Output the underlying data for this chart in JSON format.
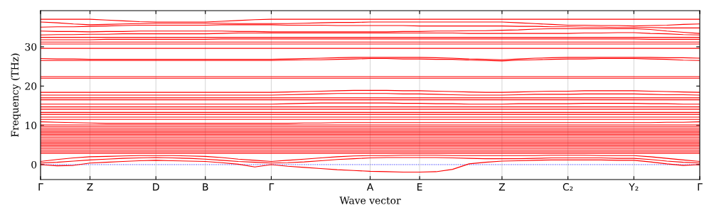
{
  "chart_data": {
    "type": "line",
    "xlabel": "Wave vector",
    "ylabel": "Frequency (THz)",
    "categories": [
      "Γ",
      null,
      null,
      "Z",
      null,
      null,
      null,
      "D",
      null,
      null,
      "B",
      null,
      null,
      null,
      "Γ",
      null,
      null,
      null,
      null,
      null,
      "A",
      null,
      null,
      "E",
      null,
      null,
      null,
      null,
      "Z",
      null,
      null,
      null,
      "C₂",
      null,
      null,
      null,
      "Y₂",
      null,
      null,
      null,
      "Γ"
    ],
    "ylim": [
      -3.8,
      39.2
    ],
    "yticks": [
      0,
      10,
      20,
      30
    ],
    "grid": "x",
    "marker": "none",
    "line_style": "solid",
    "ref_lines": [
      {
        "axis": "y",
        "value": 0,
        "color": "#0000ff",
        "line_style": "dotted"
      }
    ],
    "series": [
      {
        "color": "#ff0000",
        "values": [
          37,
          37,
          37,
          37,
          36.8,
          36.6,
          36.4,
          36.3,
          36.3,
          36.3,
          36.3,
          36.5,
          36.7,
          36.9,
          37,
          37,
          37,
          37,
          37,
          37,
          37,
          37,
          37,
          37,
          37,
          37,
          37,
          37,
          37,
          37,
          37,
          37,
          37,
          37,
          37,
          37,
          37,
          37,
          37,
          37,
          37
        ]
      },
      {
        "color": "#ff0000",
        "values": [
          36.3,
          36.1,
          35.8,
          35.6,
          35.7,
          35.8,
          35.9,
          36.0,
          36,
          36,
          36,
          36,
          35.9,
          35.9,
          35.9,
          35.9,
          36,
          36.1,
          36.2,
          36.2,
          36.3,
          36.3,
          36.3,
          36.3,
          36.3,
          36.3,
          36.3,
          36.3,
          36.3,
          36.1,
          35.9,
          35.7,
          35.5,
          35.5,
          35.4,
          35.4,
          35.3,
          35.4,
          35.5,
          35.7,
          35.8
        ]
      },
      {
        "color": "#ff0000",
        "values": [
          35,
          35.1,
          35.1,
          35.2,
          35.3,
          35.4,
          35.5,
          35.5,
          35.5,
          35.5,
          35.5,
          35.6,
          35.6,
          35.6,
          35.6,
          35.5,
          35.5,
          35.5,
          35.4,
          35.4,
          35.4,
          35.4,
          35.4,
          35.3,
          35.3,
          35.3,
          35.3,
          35.3,
          35.3,
          35.2,
          35.2,
          35.1,
          35.1,
          35.0,
          35.0,
          34.9,
          34.9,
          34.9,
          34.8,
          34.8,
          34.8
        ]
      },
      {
        "color": "#ff0000",
        "values": [
          34,
          33.9,
          33.9,
          33.8,
          33.9,
          33.9,
          34,
          34,
          34,
          34,
          34,
          34,
          33.9,
          33.9,
          33.8,
          33.8,
          33.8,
          33.8,
          33.8,
          33.8,
          33.8,
          33.8,
          33.9,
          33.9,
          34,
          34,
          34.1,
          34.1,
          34.2,
          34.3,
          34.5,
          34.6,
          34.6,
          34.6,
          34.6,
          34.6,
          34.6,
          34.4,
          34,
          33.7,
          33.4
        ]
      },
      {
        "color": "#ff0000",
        "values": [
          33,
          33.1,
          33.1,
          33.2,
          33.2,
          33.3,
          33.3,
          33.3,
          33.3,
          33.3,
          33.3,
          33.4,
          33.5,
          33.5,
          33.5,
          33.5,
          33.5,
          33.5,
          33.5,
          33.5,
          33.5,
          33.5,
          33.5,
          33.5,
          33.5,
          33.5,
          33.4,
          33.4,
          33.4,
          33.4,
          33.4,
          33.4,
          33.4,
          33.5,
          33.5,
          33.6,
          33.6,
          33.4,
          33.3,
          33.1,
          33.0
        ]
      },
      {
        "color": "#ff0000",
        "values": [
          32.4,
          32.4,
          32.4,
          32.4,
          32.4,
          32.4,
          32.4,
          32.4,
          32.4,
          32.4,
          32.4,
          32.4,
          32.4,
          32.4,
          32.4,
          32.4,
          32.4,
          32.4,
          32.4,
          32.4,
          32.4,
          32.4,
          32.4,
          32.4,
          32.4,
          32.4,
          32.4,
          32.4,
          32.4,
          32.4,
          32.4,
          32.4,
          32.4,
          32.4,
          32.4,
          32.4,
          32.4,
          32.4,
          32.4,
          32.4,
          32.4
        ]
      },
      {
        "color": "#ff0000",
        "values": [
          31.8,
          31.8,
          31.8,
          31.8,
          31.9,
          31.9,
          31.9,
          31.9,
          31.9,
          31.9,
          31.9,
          32,
          32,
          32,
          32,
          32,
          32,
          32,
          32,
          32,
          32,
          32,
          32,
          32,
          32,
          32,
          32,
          32,
          32,
          32,
          32,
          32,
          32,
          32,
          32,
          32,
          32,
          31.9,
          31.9,
          31.9,
          31.9
        ]
      },
      {
        "color": "#ff0000",
        "values": [
          31.2,
          31.2,
          31.2,
          31.2,
          31.2,
          31.2,
          31.2,
          31.2,
          31.2,
          31.2,
          31.2,
          31.2,
          31.2,
          31.2,
          31.2,
          31.2,
          31.2,
          31.2,
          31.2,
          31.2,
          31.2,
          31.2,
          31.2,
          31.2,
          31.2,
          31.2,
          31.2,
          31.2,
          31.2,
          31.2,
          31.2,
          31.2,
          31.2,
          31.2,
          31.2,
          31.2,
          31.2,
          31.2,
          31.2,
          31.2,
          31.2
        ]
      },
      {
        "color": "#ff0000",
        "values": [
          30.7,
          30.7,
          30.7,
          30.7,
          30.7,
          30.7,
          30.7,
          30.7,
          30.7,
          30.7,
          30.7,
          30.7,
          30.7,
          30.7,
          30.7,
          30.7,
          30.7,
          30.7,
          30.7,
          30.7,
          30.7,
          30.7,
          30.7,
          30.7,
          30.7,
          30.7,
          30.7,
          30.7,
          30.7,
          30.7,
          30.7,
          30.7,
          30.7,
          30.7,
          30.7,
          30.7,
          30.7,
          30.7,
          30.7,
          30.7,
          30.7
        ]
      },
      {
        "color": "#ff0000",
        "values": [
          29.6,
          29.6,
          29.6,
          29.6,
          29.6,
          29.6,
          29.6,
          29.6,
          29.6,
          29.6,
          29.6,
          29.6,
          29.6,
          29.6,
          29.6,
          29.6,
          29.6,
          29.6,
          29.6,
          29.6,
          29.6,
          29.6,
          29.6,
          29.6,
          29.6,
          29.6,
          29.6,
          29.6,
          29.6,
          29.6,
          29.6,
          29.6,
          29.6,
          29.6,
          29.6,
          29.6,
          29.6,
          29.6,
          29.6,
          29.6,
          29.6
        ]
      },
      {
        "color": "#ff0000",
        "values": [
          27,
          26.9,
          26.9,
          26.8,
          26.8,
          26.8,
          26.8,
          26.8,
          26.8,
          26.8,
          26.8,
          26.8,
          26.8,
          26.8,
          26.8,
          26.9,
          27,
          27.1,
          27.2,
          27.3,
          27.3,
          27.3,
          27.3,
          27.3,
          27.2,
          27.1,
          26.9,
          26.8,
          26.7,
          26.9,
          27.1,
          27.2,
          27.3,
          27.3,
          27.3,
          27.3,
          27.3,
          27.3,
          27.2,
          27.2,
          27.1
        ]
      },
      {
        "color": "#ff0000",
        "values": [
          26.5,
          26.5,
          26.5,
          26.5,
          26.5,
          26.5,
          26.5,
          26.5,
          26.5,
          26.5,
          26.5,
          26.5,
          26.5,
          26.5,
          26.5,
          26.6,
          26.7,
          26.7,
          26.8,
          26.9,
          27.0,
          27.0,
          26.9,
          26.9,
          26.8,
          26.8,
          26.6,
          26.5,
          26.4,
          26.6,
          26.7,
          26.8,
          26.9,
          26.9,
          27.0,
          27.0,
          27.0,
          26.9,
          26.8,
          26.6,
          26.5
        ]
      },
      {
        "color": "#ff0000",
        "values": [
          22.4,
          22.4,
          22.4,
          22.4,
          22.4,
          22.4,
          22.4,
          22.4,
          22.4,
          22.4,
          22.4,
          22.4,
          22.4,
          22.4,
          22.4,
          22.4,
          22.4,
          22.4,
          22.4,
          22.4,
          22.4,
          22.4,
          22.4,
          22.4,
          22.4,
          22.4,
          22.4,
          22.4,
          22.4,
          22.4,
          22.4,
          22.4,
          22.4,
          22.4,
          22.4,
          22.4,
          22.4,
          22.4,
          22.4,
          22.4,
          22.4
        ]
      },
      {
        "color": "#ff0000",
        "values": [
          22.0,
          22.0,
          22.0,
          22.0,
          22.0,
          22.0,
          22.0,
          22.0,
          22.0,
          22.0,
          22.0,
          22.0,
          22.0,
          22.0,
          22.0,
          22.0,
          22.0,
          22.0,
          22.0,
          22.0,
          22.0,
          22.0,
          22.0,
          22.0,
          22.0,
          22.0,
          22.0,
          22.0,
          22.0,
          22.0,
          22.0,
          22.0,
          22.0,
          22.0,
          22.0,
          22.0,
          22.0,
          22.0,
          22.0,
          22.0,
          22.0
        ]
      },
      {
        "color": "#ff0000",
        "values": [
          18.4,
          18.4,
          18.4,
          18.4,
          18.4,
          18.4,
          18.4,
          18.4,
          18.4,
          18.4,
          18.4,
          18.4,
          18.4,
          18.4,
          18.4,
          18.5,
          18.6,
          18.7,
          18.8,
          18.9,
          18.9,
          18.9,
          18.8,
          18.8,
          18.7,
          18.6,
          18.5,
          18.4,
          18.4,
          18.5,
          18.6,
          18.7,
          18.7,
          18.8,
          18.8,
          18.8,
          18.8,
          18.7,
          18.6,
          18.5,
          18.4
        ]
      },
      {
        "color": "#ff0000",
        "values": [
          17.7,
          17.7,
          17.7,
          17.7,
          17.7,
          17.7,
          17.7,
          17.7,
          17.7,
          17.7,
          17.7,
          17.7,
          17.7,
          17.7,
          17.7,
          17.8,
          17.9,
          18.0,
          18.1,
          18.1,
          18.1,
          18.1,
          18.0,
          18.0,
          17.9,
          17.8,
          17.7,
          17.7,
          17.7,
          17.8,
          17.9,
          17.9,
          17.9,
          18.0,
          18.0,
          18.0,
          18.0,
          17.9,
          17.8,
          17.8,
          17.7
        ]
      },
      {
        "color": "#ff0000",
        "values": [
          17.0,
          17.0,
          17.0,
          17.0,
          17.0,
          17.0,
          17.0,
          17.0,
          17.0,
          17.0,
          17.0,
          17.0,
          17.0,
          17.0,
          17.0,
          17.0,
          17.0,
          17.0,
          17.0,
          17.0,
          17.0,
          17.0,
          17.0,
          17.0,
          17.0,
          17.0,
          17.0,
          17.0,
          17.0,
          17.0,
          17.0,
          17.0,
          17.0,
          17.0,
          17.0,
          17.0,
          17.0,
          17.0,
          17.0,
          17.0,
          17.0
        ]
      },
      {
        "color": "#ff0000",
        "values": [
          16.5,
          16.5,
          16.5,
          16.5,
          16.5,
          16.5,
          16.5,
          16.5,
          16.5,
          16.5,
          16.5,
          16.5,
          16.5,
          16.5,
          16.5,
          16.5,
          16.5,
          16.5,
          16.5,
          16.5,
          16.5,
          16.5,
          16.5,
          16.5,
          16.5,
          16.5,
          16.5,
          16.5,
          16.5,
          16.5,
          16.5,
          16.5,
          16.5,
          16.5,
          16.5,
          16.5,
          16.5,
          16.5,
          16.5,
          16.5,
          16.5
        ]
      },
      {
        "color": "#ff0000",
        "values": [
          15.4,
          15.4,
          15.4,
          15.4,
          15.4,
          15.4,
          15.4,
          15.4,
          15.4,
          15.4,
          15.4,
          15.4,
          15.4,
          15.4,
          15.4,
          15.5,
          15.6,
          15.7,
          15.7,
          15.7,
          15.7,
          15.7,
          15.6,
          15.6,
          15.5,
          15.5,
          15.4,
          15.4,
          15.4,
          15.5,
          15.5,
          15.5,
          15.5,
          15.6,
          15.6,
          15.6,
          15.6,
          15.5,
          15.5,
          15.4,
          15.4
        ]
      },
      {
        "color": "#ff0000",
        "values": [
          14.7,
          14.7,
          14.7,
          14.7,
          14.7,
          14.7,
          14.7,
          14.7,
          14.7,
          14.7,
          14.7,
          14.7,
          14.7,
          14.7,
          14.7,
          14.7,
          14.7,
          14.7,
          14.7,
          14.7,
          14.7,
          14.7,
          14.7,
          14.7,
          14.7,
          14.7,
          14.7,
          14.7,
          14.7,
          14.7,
          14.7,
          14.7,
          14.7,
          14.7,
          14.7,
          14.7,
          14.7,
          14.7,
          14.7,
          14.7,
          14.7
        ]
      },
      {
        "color": "#ff0000",
        "values": [
          14.1,
          14.1,
          14.1,
          14.1,
          14.1,
          14.1,
          14.1,
          14.1,
          14.1,
          14.1,
          14.1,
          14.1,
          14.1,
          14.1,
          14.1,
          14.1,
          14.1,
          14.1,
          14.1,
          14.1,
          14.1,
          14.1,
          14.1,
          14.1,
          14.1,
          14.1,
          14.1,
          14.1,
          14.1,
          14.1,
          14.1,
          14.1,
          14.1,
          14.1,
          14.1,
          14.1,
          14.1,
          14.1,
          14.1,
          14.1,
          14.1
        ]
      },
      {
        "color": "#ff0000",
        "values": [
          13.3,
          13.3,
          13.3,
          13.3,
          13.3,
          13.3,
          13.3,
          13.3,
          13.3,
          13.3,
          13.3,
          13.3,
          13.3,
          13.3,
          13.3,
          13.3,
          13.3,
          13.3,
          13.3,
          13.3,
          13.3,
          13.3,
          13.3,
          13.3,
          13.3,
          13.3,
          13.3,
          13.3,
          13.3,
          13.3,
          13.3,
          13.3,
          13.3,
          13.3,
          13.3,
          13.3,
          13.3,
          13.3,
          13.3,
          13.3,
          13.3
        ]
      },
      {
        "color": "#ff0000",
        "values": [
          12.8,
          12.8,
          12.8,
          12.8,
          12.8,
          12.8,
          12.8,
          12.8,
          12.8,
          12.8,
          12.8,
          12.8,
          12.8,
          12.8,
          12.8,
          12.8,
          12.8,
          12.8,
          12.8,
          12.8,
          12.8,
          12.8,
          12.8,
          12.8,
          12.8,
          12.8,
          12.8,
          12.8,
          12.8,
          12.8,
          12.8,
          12.8,
          12.8,
          12.8,
          12.8,
          12.8,
          12.8,
          12.8,
          12.8,
          12.8,
          12.8
        ]
      },
      {
        "color": "#ff0000",
        "values": [
          12.1,
          12.1,
          12.1,
          12.1,
          12.1,
          12.1,
          12.1,
          12.1,
          12.1,
          12.1,
          12.1,
          12.1,
          12.1,
          12.1,
          12.1,
          12.1,
          12.1,
          12.1,
          12.1,
          12.1,
          12.1,
          12.1,
          12.1,
          12.1,
          12.1,
          12.1,
          12.1,
          12.1,
          12.1,
          12.1,
          12.1,
          12.1,
          12.1,
          12.1,
          12.1,
          12.1,
          12.1,
          12.1,
          12.1,
          12.1,
          12.1
        ]
      },
      {
        "color": "#ff0000",
        "values": [
          11.5,
          11.5,
          11.5,
          11.5,
          11.5,
          11.5,
          11.5,
          11.5,
          11.5,
          11.5,
          11.5,
          11.5,
          11.5,
          11.5,
          11.5,
          11.5,
          11.5,
          11.5,
          11.5,
          11.5,
          11.5,
          11.5,
          11.5,
          11.5,
          11.5,
          11.5,
          11.5,
          11.5,
          11.5,
          11.5,
          11.5,
          11.5,
          11.5,
          11.5,
          11.5,
          11.5,
          11.5,
          11.5,
          11.5,
          11.5,
          11.5
        ]
      },
      {
        "color": "#ff0000",
        "values": [
          10.9,
          10.8,
          10.7,
          10.6,
          10.5,
          10.5,
          10.5,
          10.5,
          10.5,
          10.5,
          10.5,
          10.5,
          10.5,
          10.5,
          10.5,
          10.5,
          10.6,
          10.6,
          10.7,
          10.7,
          10.7,
          10.7,
          10.7,
          10.7,
          10.7,
          10.7,
          10.7,
          10.7,
          10.7,
          10.7,
          10.7,
          10.7,
          10.7,
          10.7,
          10.7,
          10.7,
          10.7,
          10.7,
          10.8,
          10.8,
          10.9
        ]
      },
      {
        "color": "#ff0000",
        "values": [
          10.1,
          10.1,
          10.1,
          10.1,
          10.1,
          10.1,
          10.1,
          10.1,
          10.1,
          10.1,
          10.1,
          10.1,
          10.1,
          10.1,
          10.1,
          10.1,
          10.1,
          10.1,
          10.1,
          10.1,
          10.1,
          10.1,
          10.1,
          10.1,
          10.1,
          10.1,
          10.1,
          10.1,
          10.1,
          10.1,
          10.1,
          10.1,
          10.1,
          10.1,
          10.1,
          10.1,
          10.1,
          10.1,
          10.1,
          10.1,
          10.1
        ]
      },
      {
        "color": "#ff0000",
        "values": [
          9.7,
          9.7,
          9.7,
          9.7,
          9.7,
          9.7,
          9.7,
          9.7,
          9.7,
          9.7,
          9.7,
          9.7,
          9.7,
          9.7,
          9.7,
          9.7,
          9.7,
          9.7,
          9.7,
          9.7,
          9.7,
          9.7,
          9.7,
          9.7,
          9.7,
          9.7,
          9.7,
          9.7,
          9.7,
          9.7,
          9.7,
          9.7,
          9.7,
          9.7,
          9.7,
          9.7,
          9.7,
          9.7,
          9.7,
          9.7,
          9.7
        ]
      },
      {
        "color": "#ff0000",
        "values": [
          9.3,
          9.3,
          9.3,
          9.3,
          9.3,
          9.3,
          9.3,
          9.3,
          9.3,
          9.3,
          9.3,
          9.3,
          9.3,
          9.3,
          9.3,
          9.3,
          9.3,
          9.3,
          9.3,
          9.3,
          9.3,
          9.3,
          9.3,
          9.3,
          9.3,
          9.3,
          9.3,
          9.3,
          9.3,
          9.3,
          9.3,
          9.3,
          9.3,
          9.3,
          9.3,
          9.3,
          9.3,
          9.3,
          9.3,
          9.3,
          9.3
        ]
      },
      {
        "color": "#ff0000",
        "values": [
          8.9,
          8.9,
          8.9,
          8.9,
          8.9,
          8.9,
          8.9,
          8.9,
          8.9,
          8.9,
          8.9,
          8.9,
          8.9,
          8.9,
          8.9,
          8.9,
          8.9,
          8.9,
          8.9,
          8.9,
          8.9,
          8.9,
          8.9,
          8.9,
          8.9,
          8.9,
          8.9,
          8.9,
          8.9,
          8.9,
          8.9,
          8.9,
          8.9,
          8.9,
          8.9,
          8.9,
          8.9,
          8.9,
          8.9,
          8.9,
          8.9
        ]
      },
      {
        "color": "#ff0000",
        "values": [
          8.5,
          8.5,
          8.5,
          8.5,
          8.5,
          8.5,
          8.5,
          8.5,
          8.5,
          8.5,
          8.5,
          8.5,
          8.5,
          8.5,
          8.5,
          8.5,
          8.5,
          8.5,
          8.5,
          8.5,
          8.5,
          8.5,
          8.5,
          8.5,
          8.5,
          8.5,
          8.5,
          8.5,
          8.5,
          8.5,
          8.5,
          8.5,
          8.5,
          8.5,
          8.5,
          8.5,
          8.5,
          8.5,
          8.5,
          8.5,
          8.5
        ]
      },
      {
        "color": "#ff0000",
        "values": [
          8.1,
          8.1,
          8.1,
          8.1,
          8.1,
          8.1,
          8.1,
          8.1,
          8.1,
          8.1,
          8.1,
          8.1,
          8.1,
          8.1,
          8.1,
          8.1,
          8.1,
          8.1,
          8.1,
          8.1,
          8.1,
          8.1,
          8.1,
          8.1,
          8.1,
          8.1,
          8.1,
          8.1,
          8.1,
          8.1,
          8.1,
          8.1,
          8.1,
          8.1,
          8.1,
          8.1,
          8.1,
          8.1,
          8.1,
          8.1,
          8.1
        ]
      },
      {
        "color": "#ff0000",
        "values": [
          7.7,
          7.7,
          7.7,
          7.7,
          7.7,
          7.7,
          7.7,
          7.7,
          7.7,
          7.7,
          7.7,
          7.7,
          7.7,
          7.7,
          7.7,
          7.7,
          7.7,
          7.7,
          7.7,
          7.7,
          7.7,
          7.7,
          7.7,
          7.7,
          7.7,
          7.7,
          7.7,
          7.7,
          7.7,
          7.7,
          7.7,
          7.7,
          7.7,
          7.7,
          7.7,
          7.7,
          7.7,
          7.7,
          7.7,
          7.7,
          7.7
        ]
      },
      {
        "color": "#ff0000",
        "values": [
          7.3,
          7.3,
          7.3,
          7.3,
          7.3,
          7.3,
          7.3,
          7.3,
          7.3,
          7.3,
          7.3,
          7.3,
          7.3,
          7.3,
          7.3,
          7.3,
          7.3,
          7.3,
          7.3,
          7.3,
          7.3,
          7.3,
          7.3,
          7.3,
          7.3,
          7.3,
          7.3,
          7.3,
          7.3,
          7.3,
          7.3,
          7.3,
          7.3,
          7.3,
          7.3,
          7.3,
          7.3,
          7.3,
          7.3,
          7.3,
          7.3
        ]
      },
      {
        "color": "#ff0000",
        "values": [
          6.9,
          6.9,
          6.9,
          6.9,
          6.9,
          6.9,
          6.9,
          6.9,
          6.9,
          6.9,
          6.9,
          6.9,
          6.9,
          6.9,
          6.9,
          6.9,
          6.9,
          6.9,
          6.9,
          6.9,
          6.9,
          6.9,
          6.9,
          6.9,
          6.9,
          6.9,
          6.9,
          6.9,
          6.9,
          6.9,
          6.9,
          6.9,
          6.9,
          6.9,
          6.9,
          6.9,
          6.9,
          6.9,
          6.9,
          6.9,
          6.9
        ]
      },
      {
        "color": "#ff0000",
        "values": [
          6.5,
          6.5,
          6.5,
          6.5,
          6.5,
          6.5,
          6.5,
          6.5,
          6.5,
          6.5,
          6.5,
          6.5,
          6.5,
          6.5,
          6.5,
          6.5,
          6.5,
          6.5,
          6.5,
          6.5,
          6.5,
          6.5,
          6.5,
          6.5,
          6.5,
          6.5,
          6.5,
          6.5,
          6.5,
          6.5,
          6.5,
          6.5,
          6.5,
          6.5,
          6.5,
          6.5,
          6.5,
          6.5,
          6.5,
          6.5,
          6.5
        ]
      },
      {
        "color": "#ff0000",
        "values": [
          6.1,
          6.1,
          6.1,
          6.1,
          6.1,
          6.1,
          6.1,
          6.1,
          6.1,
          6.1,
          6.1,
          6.1,
          6.1,
          6.1,
          6.1,
          6.1,
          6.1,
          6.1,
          6.1,
          6.1,
          6.1,
          6.1,
          6.1,
          6.1,
          6.1,
          6.1,
          6.1,
          6.1,
          6.1,
          6.1,
          6.1,
          6.1,
          6.1,
          6.1,
          6.1,
          6.1,
          6.1,
          6.1,
          6.1,
          6.1,
          6.1
        ]
      },
      {
        "color": "#ff0000",
        "values": [
          5.7,
          5.7,
          5.7,
          5.7,
          5.7,
          5.7,
          5.7,
          5.7,
          5.7,
          5.7,
          5.7,
          5.7,
          5.7,
          5.7,
          5.7,
          5.7,
          5.7,
          5.7,
          5.7,
          5.7,
          5.7,
          5.7,
          5.7,
          5.7,
          5.7,
          5.7,
          5.7,
          5.7,
          5.7,
          5.7,
          5.7,
          5.7,
          5.7,
          5.7,
          5.7,
          5.7,
          5.7,
          5.7,
          5.7,
          5.7,
          5.7
        ]
      },
      {
        "color": "#ff0000",
        "values": [
          5.3,
          5.3,
          5.3,
          5.3,
          5.3,
          5.3,
          5.3,
          5.3,
          5.3,
          5.3,
          5.3,
          5.3,
          5.3,
          5.3,
          5.3,
          5.3,
          5.3,
          5.3,
          5.3,
          5.3,
          5.3,
          5.3,
          5.3,
          5.3,
          5.3,
          5.3,
          5.3,
          5.3,
          5.3,
          5.3,
          5.3,
          5.3,
          5.3,
          5.3,
          5.3,
          5.3,
          5.3,
          5.3,
          5.3,
          5.3,
          5.3
        ]
      },
      {
        "color": "#ff0000",
        "values": [
          4.9,
          4.9,
          4.9,
          4.9,
          4.9,
          4.9,
          4.9,
          4.9,
          4.9,
          4.9,
          4.9,
          4.9,
          4.9,
          4.9,
          4.9,
          4.9,
          4.9,
          4.9,
          4.9,
          4.9,
          4.9,
          4.9,
          4.9,
          4.9,
          4.9,
          4.9,
          4.9,
          4.9,
          4.9,
          4.9,
          4.9,
          4.9,
          4.9,
          4.9,
          4.9,
          4.9,
          4.9,
          4.9,
          4.9,
          4.9,
          4.9
        ]
      },
      {
        "color": "#ff0000",
        "values": [
          4.5,
          4.5,
          4.5,
          4.5,
          4.5,
          4.5,
          4.5,
          4.5,
          4.5,
          4.5,
          4.5,
          4.5,
          4.5,
          4.5,
          4.5,
          4.5,
          4.5,
          4.5,
          4.5,
          4.5,
          4.5,
          4.5,
          4.5,
          4.5,
          4.5,
          4.5,
          4.5,
          4.5,
          4.5,
          4.5,
          4.5,
          4.5,
          4.5,
          4.5,
          4.5,
          4.5,
          4.5,
          4.5,
          4.5,
          4.5,
          4.5
        ]
      },
      {
        "color": "#ff0000",
        "values": [
          4.1,
          4.1,
          4.1,
          4.1,
          4.1,
          4.1,
          4.1,
          4.1,
          4.1,
          4.1,
          4.1,
          4.1,
          4.1,
          4.1,
          4.1,
          4.1,
          4.1,
          4.1,
          4.1,
          4.1,
          4.1,
          4.1,
          4.1,
          4.1,
          4.1,
          4.1,
          4.1,
          4.1,
          4.1,
          4.1,
          4.1,
          4.1,
          4.1,
          4.1,
          4.1,
          4.1,
          4.1,
          4.1,
          4.1,
          4.1,
          4.1
        ]
      },
      {
        "color": "#ff0000",
        "values": [
          3.7,
          3.7,
          3.7,
          3.7,
          3.7,
          3.7,
          3.7,
          3.7,
          3.7,
          3.7,
          3.7,
          3.7,
          3.7,
          3.7,
          3.7,
          3.7,
          3.7,
          3.7,
          3.7,
          3.7,
          3.7,
          3.7,
          3.7,
          3.7,
          3.7,
          3.7,
          3.7,
          3.7,
          3.7,
          3.7,
          3.7,
          3.7,
          3.7,
          3.7,
          3.7,
          3.7,
          3.7,
          3.7,
          3.7,
          3.7,
          3.7
        ]
      },
      {
        "color": "#ff0000",
        "values": [
          3.3,
          3.3,
          3.3,
          3.3,
          3.3,
          3.3,
          3.3,
          3.3,
          3.3,
          3.3,
          3.3,
          3.3,
          3.3,
          3.3,
          3.3,
          3.3,
          3.3,
          3.3,
          3.3,
          3.3,
          3.3,
          3.3,
          3.3,
          3.3,
          3.3,
          3.3,
          3.3,
          3.3,
          3.3,
          3.3,
          3.3,
          3.3,
          3.3,
          3.3,
          3.3,
          3.3,
          3.3,
          3.3,
          3.3,
          3.3,
          3.3
        ]
      },
      {
        "color": "#ff0000",
        "values": [
          2.9,
          2.9,
          2.9,
          2.9,
          2.9,
          2.9,
          2.9,
          2.9,
          2.9,
          2.9,
          2.9,
          2.9,
          2.9,
          2.9,
          2.9,
          2.9,
          2.9,
          2.9,
          2.9,
          2.9,
          2.9,
          2.9,
          2.9,
          2.9,
          2.9,
          2.9,
          2.9,
          2.9,
          2.9,
          2.9,
          2.9,
          2.9,
          2.9,
          2.9,
          2.9,
          2.9,
          2.9,
          2.9,
          2.9,
          2.9,
          2.9
        ]
      },
      {
        "color": "#ff0000",
        "values": [
          0.8,
          1.3,
          1.7,
          2.0,
          2.1,
          2.2,
          2.3,
          2.3,
          2.3,
          2.2,
          2.1,
          1.8,
          1.4,
          1.1,
          0.8,
          1.1,
          1.4,
          1.7,
          2.0,
          2.2,
          2.3,
          2.3,
          2.4,
          2.4,
          2.4,
          2.3,
          2.3,
          2.3,
          2.3,
          2.3,
          2.3,
          2.4,
          2.4,
          2.4,
          2.3,
          2.3,
          2.3,
          2.0,
          1.6,
          1.2,
          0.8
        ]
      },
      {
        "color": "#ff0000",
        "values": [
          0.4,
          0.6,
          0.9,
          1.2,
          1.4,
          1.6,
          1.7,
          1.8,
          1.7,
          1.6,
          1.4,
          1.1,
          0.8,
          0.6,
          0.4,
          0.5,
          0.7,
          1.0,
          1.3,
          1.5,
          1.7,
          1.8,
          1.8,
          1.8,
          1.8,
          1.7,
          1.6,
          1.5,
          1.5,
          1.5,
          1.6,
          1.7,
          1.7,
          1.7,
          1.7,
          1.6,
          1.6,
          1.3,
          0.9,
          0.6,
          0.4
        ]
      },
      {
        "color": "#ff0000",
        "values": [
          0,
          -0.3,
          -0.2,
          0.4,
          0.6,
          0.8,
          1.0,
          1.1,
          1.0,
          0.9,
          0.8,
          0.5,
          0.1,
          -0.6,
          0,
          -0.4,
          -0.7,
          -1.0,
          -1.3,
          -1.5,
          -1.7,
          -1.8,
          -1.9,
          -1.9,
          -1.8,
          -1.2,
          0.2,
          0.6,
          0.9,
          1.0,
          1.1,
          1.2,
          1.2,
          1.2,
          1.2,
          1.1,
          1.1,
          0.7,
          0.2,
          -0.2,
          0
        ]
      }
    ]
  }
}
